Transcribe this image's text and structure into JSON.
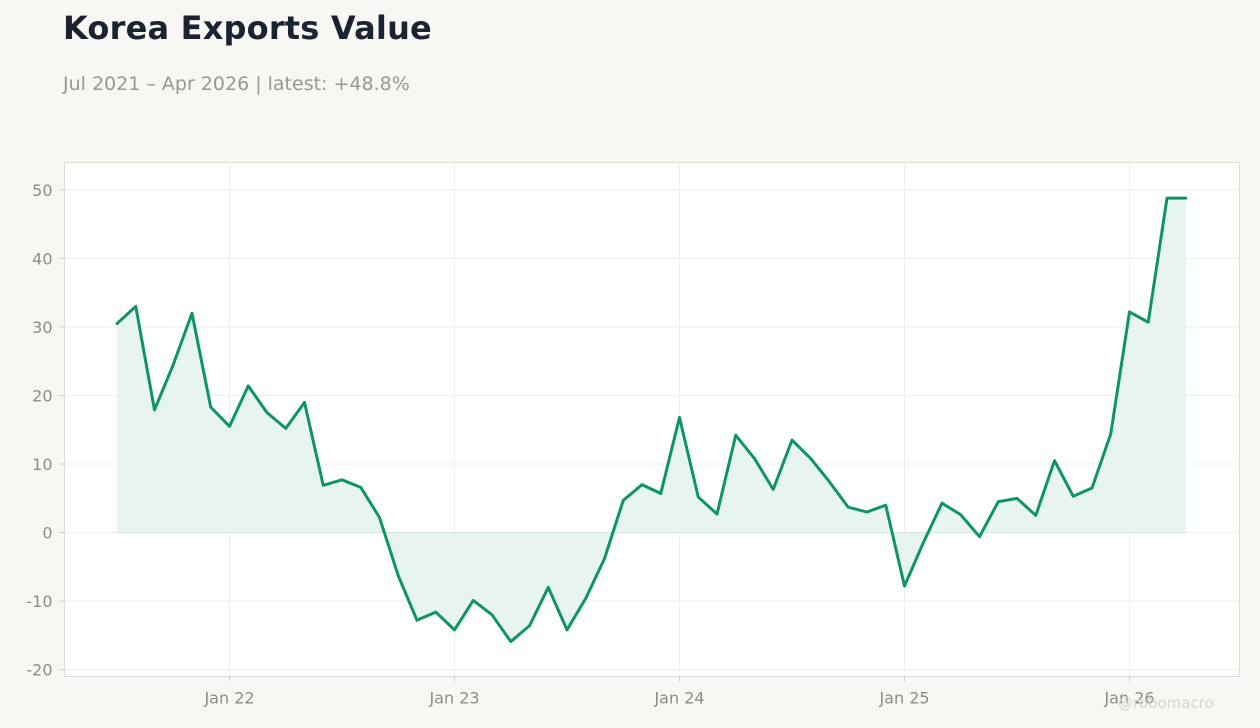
{
  "title": "Korea Exports Value",
  "subtitle": "Jul 2021 – Apr 2026 | latest: +48.8%",
  "watermark": "@robomacro",
  "colors": {
    "line": "#0f9468",
    "fill": "#e8f4ef",
    "background": "#f8f7f4",
    "plot_background": "#ffffff"
  },
  "chart_data": {
    "type": "area",
    "title": "Korea Exports Value",
    "subtitle": "Jul 2021 – Apr 2026 | latest: +48.8%",
    "xlabel": "",
    "ylabel": "",
    "ylim": [
      -21,
      54
    ],
    "yticks": [
      -20,
      -10,
      0,
      10,
      20,
      30,
      40,
      50
    ],
    "xticks": [
      "2022-01",
      "2023-01",
      "2024-01",
      "2025-01",
      "2026-01"
    ],
    "xtick_labels": [
      "Jan 22",
      "Jan 23",
      "Jan 24",
      "Jan 25",
      "Jan 26"
    ],
    "x_start": "2021-07",
    "x_end": "2026-04",
    "grid": true,
    "legend": "none",
    "series": [
      {
        "x": [
          "2021-07",
          "2021-08",
          "2021-09",
          "2021-10",
          "2021-11",
          "2021-12",
          "2022-01",
          "2022-02",
          "2022-03",
          "2022-04",
          "2022-05",
          "2022-06",
          "2022-07",
          "2022-08",
          "2022-09",
          "2022-10",
          "2022-11",
          "2022-12",
          "2023-01",
          "2023-02",
          "2023-03",
          "2023-04",
          "2023-05",
          "2023-06",
          "2023-07",
          "2023-08",
          "2023-09",
          "2023-10",
          "2023-11",
          "2023-12",
          "2024-01",
          "2024-02",
          "2024-03",
          "2024-04",
          "2024-05",
          "2024-06",
          "2024-07",
          "2024-08",
          "2024-09",
          "2024-10",
          "2024-11",
          "2024-12",
          "2025-01",
          "2025-02",
          "2025-03",
          "2025-04",
          "2025-05",
          "2025-06",
          "2025-07",
          "2025-08",
          "2025-09",
          "2025-10",
          "2025-11",
          "2025-12",
          "2026-01",
          "2026-02",
          "2026-03",
          "2026-04"
        ],
        "values": [
          30.5,
          33.0,
          17.9,
          24.5,
          32.0,
          18.3,
          15.5,
          21.4,
          17.5,
          15.2,
          19.0,
          6.9,
          7.7,
          6.6,
          2.2,
          -6.3,
          -12.8,
          -11.6,
          -14.2,
          -9.9,
          -12.0,
          -15.9,
          -13.6,
          -8.0,
          -14.2,
          -9.6,
          -3.8,
          4.7,
          7.0,
          5.7,
          16.8,
          5.2,
          2.7,
          14.2,
          10.8,
          6.3,
          13.5,
          10.8,
          7.4,
          3.7,
          3.0,
          4.0,
          -7.8,
          -1.5,
          4.3,
          2.6,
          -0.6,
          4.5,
          5.0,
          2.5,
          10.5,
          5.3,
          6.5,
          14.4,
          32.2,
          30.7,
          48.8,
          48.8
        ]
      }
    ]
  }
}
